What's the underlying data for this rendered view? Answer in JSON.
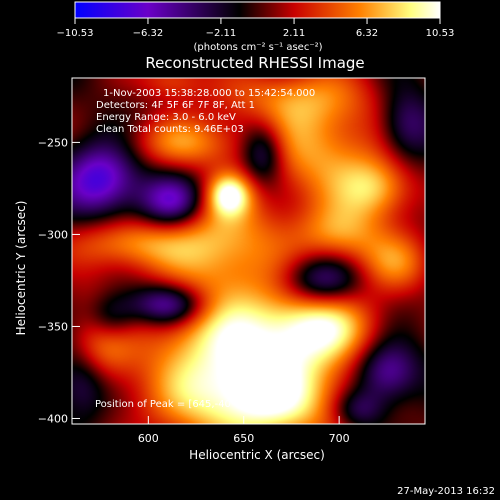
{
  "chart_data": {
    "type": "heatmap",
    "title": "Reconstructed RHESSI Image",
    "xlabel": "Heliocentric X (arcsec)",
    "ylabel": "Heliocentric Y (arcsec)",
    "xlim": [
      560,
      745
    ],
    "ylim": [
      -403,
      -215
    ],
    "xticks": [
      "600",
      "650",
      "700"
    ],
    "xtick_values": [
      600,
      650,
      700
    ],
    "yticks": [
      "-250",
      "-300",
      "-350",
      "-400"
    ],
    "ytick_values": [
      -250,
      -300,
      -350,
      -400
    ],
    "colorbar": {
      "min": -10.53,
      "max": 10.53,
      "tick_labels": [
        "-10.53",
        "-6.32",
        "-2.11",
        "2.11",
        "6.32",
        "10.53"
      ],
      "tick_values": [
        -10.53,
        -6.32,
        -2.11,
        2.11,
        6.32,
        10.53
      ],
      "units_label": "(photons cm⁻² s⁻¹ asec⁻²)",
      "colormap": [
        "#0000ff",
        "#6a00c8",
        "#000000",
        "#c80000",
        "#ff8000",
        "#ffff80",
        "#ffffff"
      ]
    },
    "annotations": [
      "1-Nov-2003 15:38:28.000 to 15:42:54.000",
      "Detectors: 4F 5F 6F 7F 8F, Att 1",
      "Energy Range: 3.0 - 6.0 keV",
      "Clean     Total counts: 9.46E+03"
    ],
    "peak_label": "Position of Peak = [645,-40",
    "sources": [
      {
        "x": 655,
        "y": -390,
        "sx": 35,
        "sy": 18,
        "amp": 10.5
      },
      {
        "x": 645,
        "y": -355,
        "sx": 35,
        "sy": 20,
        "amp": 8
      },
      {
        "x": 690,
        "y": -350,
        "sx": 20,
        "sy": 14,
        "amp": 7
      },
      {
        "x": 640,
        "y": -305,
        "sx": 22,
        "sy": 20,
        "amp": 7
      },
      {
        "x": 642,
        "y": -278,
        "sx": 8,
        "sy": 8,
        "amp": 8
      },
      {
        "x": 590,
        "y": -305,
        "sx": 22,
        "sy": 10,
        "amp": 6
      },
      {
        "x": 575,
        "y": -355,
        "sx": 12,
        "sy": 18,
        "amp": 6
      },
      {
        "x": 620,
        "y": -250,
        "sx": 22,
        "sy": 10,
        "amp": 5.5
      },
      {
        "x": 690,
        "y": -255,
        "sx": 22,
        "sy": 20,
        "amp": 6.5
      },
      {
        "x": 720,
        "y": -275,
        "sx": 14,
        "sy": 12,
        "amp": 6.5
      },
      {
        "x": 730,
        "y": -315,
        "sx": 14,
        "sy": 12,
        "amp": 5
      },
      {
        "x": 700,
        "y": -300,
        "sx": 16,
        "sy": 12,
        "amp": 6
      },
      {
        "x": 675,
        "y": -225,
        "sx": 30,
        "sy": 12,
        "amp": 5
      },
      {
        "x": 612,
        "y": -215,
        "sx": 12,
        "sy": 8,
        "amp": 4
      },
      {
        "x": 610,
        "y": -338,
        "sx": 14,
        "sy": 8,
        "amp": -8
      },
      {
        "x": 580,
        "y": -345,
        "sx": 10,
        "sy": 10,
        "amp": -7
      },
      {
        "x": 575,
        "y": -270,
        "sx": 14,
        "sy": 14,
        "amp": -8
      },
      {
        "x": 612,
        "y": -282,
        "sx": 12,
        "sy": 10,
        "amp": -7
      },
      {
        "x": 690,
        "y": -325,
        "sx": 14,
        "sy": 10,
        "amp": -6
      },
      {
        "x": 725,
        "y": -375,
        "sx": 12,
        "sy": 12,
        "amp": -7
      },
      {
        "x": 710,
        "y": -395,
        "sx": 10,
        "sy": 8,
        "amp": -5
      },
      {
        "x": 660,
        "y": -255,
        "sx": 8,
        "sy": 12,
        "amp": -6
      },
      {
        "x": 735,
        "y": -240,
        "sx": 10,
        "sy": 14,
        "amp": -5
      },
      {
        "x": 565,
        "y": -380,
        "sx": 10,
        "sy": 14,
        "amp": -5
      }
    ]
  },
  "footer": {
    "timestamp": "27-May-2013 16:32"
  }
}
